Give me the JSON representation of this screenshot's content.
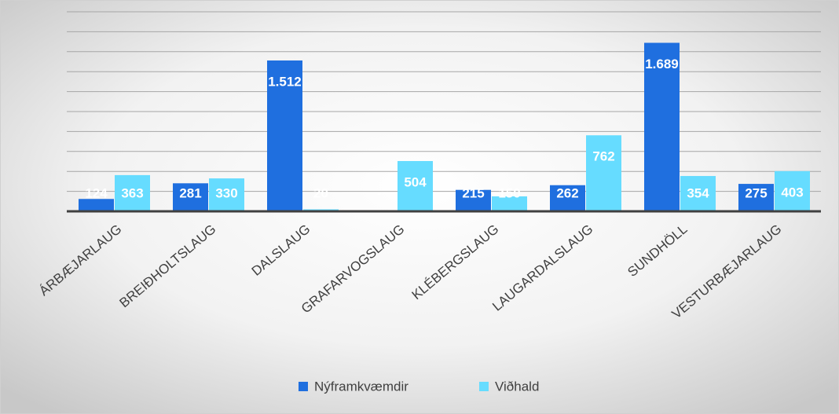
{
  "chart_data": {
    "type": "bar",
    "categories": [
      "ÁRBÆJARLAUG",
      "BREIÐHOLTSLAUG",
      "DALSLAUG",
      "GRAFARVOGSLAUG",
      "KLÉBERGSLAUG",
      "LAUGARDALSLAUG",
      "SUNDHÖLL",
      "VESTURBÆJARLAUG"
    ],
    "series": [
      {
        "name": "Nýframkvæmdir",
        "color": "#1f6fdf",
        "values": [
          124,
          281,
          1512,
          0,
          215,
          262,
          1689,
          275
        ],
        "value_labels": [
          "124",
          "281",
          "1.512",
          "-",
          "215",
          "262",
          "1.689",
          "275"
        ]
      },
      {
        "name": "Viðhald",
        "color": "#66dcff",
        "values": [
          363,
          330,
          20,
          504,
          150,
          762,
          354,
          403
        ],
        "value_labels": [
          "363",
          "330",
          "20",
          "504",
          "150",
          "762",
          "354",
          "403"
        ]
      }
    ],
    "ylim": [
      0,
      2000
    ],
    "yticks": [
      0,
      200,
      400,
      600,
      800,
      1000,
      1200,
      1400,
      1600,
      1800,
      2000
    ],
    "grid": true,
    "legend": "bottom"
  }
}
